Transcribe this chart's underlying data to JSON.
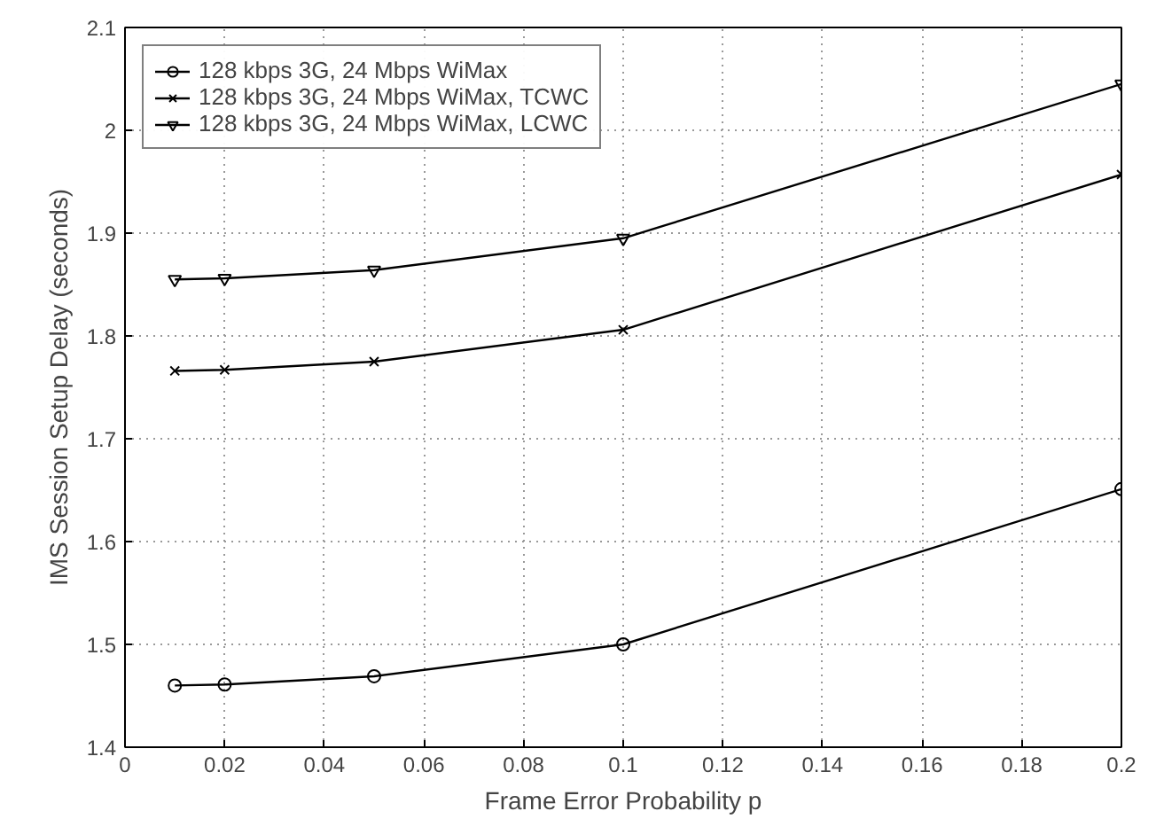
{
  "chart_data": {
    "type": "line",
    "xlabel": "Frame Error Probability p",
    "ylabel": "IMS Session Setup Delay (seconds)",
    "x": [
      0.01,
      0.02,
      0.05,
      0.1,
      0.2
    ],
    "series": [
      {
        "name": "128 kbps 3G, 24 Mbps WiMax",
        "color": "#000000",
        "marker": "circle",
        "values": [
          1.46,
          1.461,
          1.469,
          1.5,
          1.651
        ]
      },
      {
        "name": "128 kbps 3G, 24 Mbps WiMax, TCWC",
        "color": "#000000",
        "marker": "cross",
        "values": [
          1.766,
          1.767,
          1.775,
          1.806,
          1.957
        ]
      },
      {
        "name": "128 kbps 3G, 24 Mbps WiMax, LCWC",
        "color": "#000000",
        "marker": "triangle",
        "values": [
          1.855,
          1.856,
          1.864,
          1.895,
          2.045
        ]
      }
    ],
    "xlim": [
      0,
      0.2
    ],
    "xticks": [
      0,
      0.02,
      0.04,
      0.06,
      0.08,
      0.1,
      0.12,
      0.14,
      0.16,
      0.18,
      0.2
    ],
    "ylim": [
      1.4,
      2.1
    ],
    "yticks": [
      1.4,
      1.5,
      1.6,
      1.7,
      1.8,
      1.9,
      2,
      2.1
    ],
    "grid": true,
    "legend": "top left",
    "line_style": "solid"
  }
}
